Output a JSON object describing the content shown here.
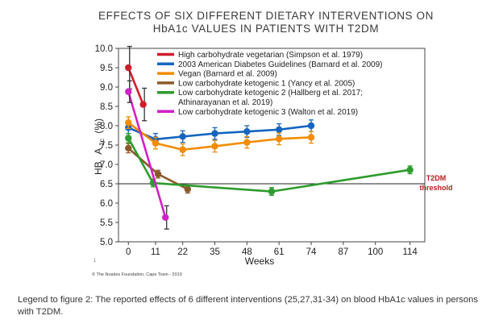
{
  "chart_data": {
    "type": "line",
    "title_line1": "EFFECTS OF SIX DIFFERENT DIETARY INTERVENTIONS ON",
    "title_line2": "HbA1c VALUES IN PATIENTS WITH T2DM",
    "ylabel_prefix": "HB",
    "ylabel_main": "A",
    "ylabel_sub": "1c",
    "ylabel_unit": "(%)",
    "xlabel": "Weeks",
    "xlim": [
      -4,
      120
    ],
    "ylim": [
      5.0,
      10.0
    ],
    "x_ticks": [
      "0",
      "11",
      "22",
      "35",
      "48",
      "61",
      "74",
      "87",
      "100",
      "114"
    ],
    "y_ticks": [
      "5.0",
      "5.5",
      "6.0",
      "6.5",
      "7.0",
      "7.5",
      "8.0",
      "8.5",
      "9.0",
      "9.5",
      "10.0"
    ],
    "grid": false,
    "legend_position": "top-left",
    "threshold": {
      "value": 6.5,
      "label_line1": "T2DM",
      "label_line2": "threshold",
      "color": "#b71c1c"
    },
    "series": [
      {
        "name": "High carbohydrate vegetarian (Simpson et al. 1979)",
        "legend_lines": [
          "High carbohydrate vegetarian (Simpson et al. 1979)"
        ],
        "color": "#d01c2b",
        "x": [
          0,
          6
        ],
        "y": [
          9.5,
          8.55
        ],
        "err": [
          0.55,
          0.42
        ],
        "err_style": "whisker"
      },
      {
        "name": "2003 American Diabetes Guidelines (Barnard et al. 2009)",
        "legend_lines": [
          "2003 American Diabetes Guidelines (Barnard et al. 2009)"
        ],
        "color": "#1565c0",
        "x": [
          0,
          11,
          22,
          35,
          48,
          61,
          74
        ],
        "y": [
          7.95,
          7.65,
          7.72,
          7.8,
          7.85,
          7.9,
          8.0
        ],
        "err": [
          0.15,
          0.15,
          0.15,
          0.15,
          0.15,
          0.15,
          0.15
        ],
        "err_style": "capped"
      },
      {
        "name": "Vegan (Barnard et al. 2009)",
        "legend_lines": [
          "Vegan (Barnard et al. 2009)"
        ],
        "color": "#f28c00",
        "x": [
          0,
          11,
          22,
          35,
          48,
          61,
          74
        ],
        "y": [
          8.08,
          7.55,
          7.38,
          7.47,
          7.57,
          7.66,
          7.7
        ],
        "err": [
          0.15,
          0.15,
          0.15,
          0.15,
          0.15,
          0.15,
          0.15
        ],
        "err_style": "capped"
      },
      {
        "name": "Low carbohydrate ketogenic 1 (Yancy et al. 2005)",
        "legend_lines": [
          "Low carbohydrate ketogenic 1 (Yancy et al. 2005)"
        ],
        "color": "#8b5a2b",
        "x": [
          0,
          12,
          24
        ],
        "y": [
          7.42,
          6.75,
          6.36
        ],
        "err": [
          0.12,
          0.1,
          0.1
        ],
        "err_style": "capped"
      },
      {
        "name": "Low carbohydrate ketogenic 2 (Hallberg et al. 2017; Athinarayanan et al. 2019)",
        "legend_lines": [
          "Low carbohydrate ketogenic 2 (Hallberg et al. 2017;",
          "Athinarayanan et al. 2019)"
        ],
        "color": "#2e9b2e",
        "x": [
          0,
          10,
          58,
          114
        ],
        "y": [
          7.68,
          6.52,
          6.3,
          6.86
        ],
        "err": [
          0.12,
          0.1,
          0.1,
          0.1
        ],
        "err_style": "capped"
      },
      {
        "name": "Low carbohydrate ketogenic 3 (Walton et al. 2019)",
        "legend_lines": [
          "Low carbohydrate ketogenic 3 (Walton et al. 2019)"
        ],
        "color": "#d21fc7",
        "x": [
          0,
          15
        ],
        "y": [
          8.88,
          5.63
        ],
        "err": [
          0.28,
          0.3
        ],
        "err_style": "whisker"
      }
    ]
  },
  "copyright": "© The Noakes Foundation, Cape Town - 2019",
  "caption": "Legend to figure 2: The reported effects of 6 different interventions (25,27,31-34) on blood HbA1c values in persons with T2DM."
}
